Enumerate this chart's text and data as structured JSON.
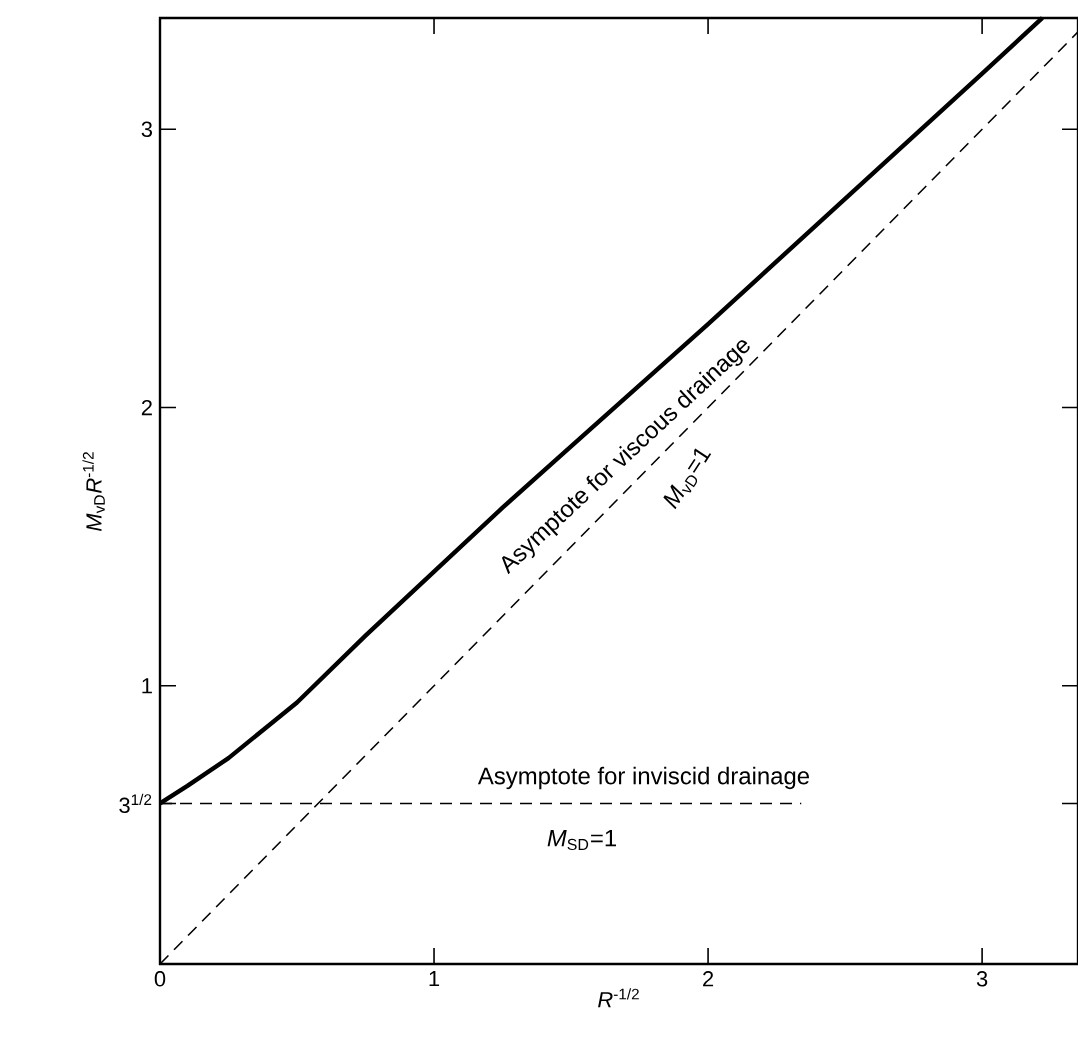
{
  "chart_data": {
    "type": "line",
    "xlabel": "*R*$^{-1/2}$",
    "ylabel": "*M*$_{vD}$*R*$^{-1/2}$",
    "xlim": [
      0,
      3.35
    ],
    "ylim": [
      0,
      3.4
    ],
    "xticks": [
      0,
      1,
      2,
      3
    ],
    "yticks": [
      {
        "value": 0.577,
        "label": "3$^{1/2}$"
      },
      1,
      2,
      3
    ],
    "grid": false,
    "series": [
      {
        "color": "#000000",
        "line_style": "solid",
        "x": [
          0,
          0.1,
          0.25,
          0.4,
          0.5,
          0.75,
          1,
          1.25,
          1.5,
          2,
          2.5,
          3,
          3.22
        ],
        "values": [
          0.577,
          0.64,
          0.74,
          0.86,
          0.94,
          1.18,
          1.41,
          1.64,
          1.86,
          2.3,
          2.75,
          3.2,
          3.4
        ]
      },
      {
        "color": "#000000",
        "line_style": "dashed",
        "x": [
          0,
          3.35
        ],
        "values": [
          0,
          3.35
        ]
      },
      {
        "color": "#000000",
        "line_style": "dashed",
        "x": [
          0,
          2.34
        ],
        "values": [
          0.577,
          0.577
        ]
      }
    ],
    "annotations": [
      "Asymptote for viscous drainage",
      "*M*$_{vD}$=1",
      "Asymptote for inviscid drainage",
      "*M*$_{SD}$=1"
    ]
  }
}
